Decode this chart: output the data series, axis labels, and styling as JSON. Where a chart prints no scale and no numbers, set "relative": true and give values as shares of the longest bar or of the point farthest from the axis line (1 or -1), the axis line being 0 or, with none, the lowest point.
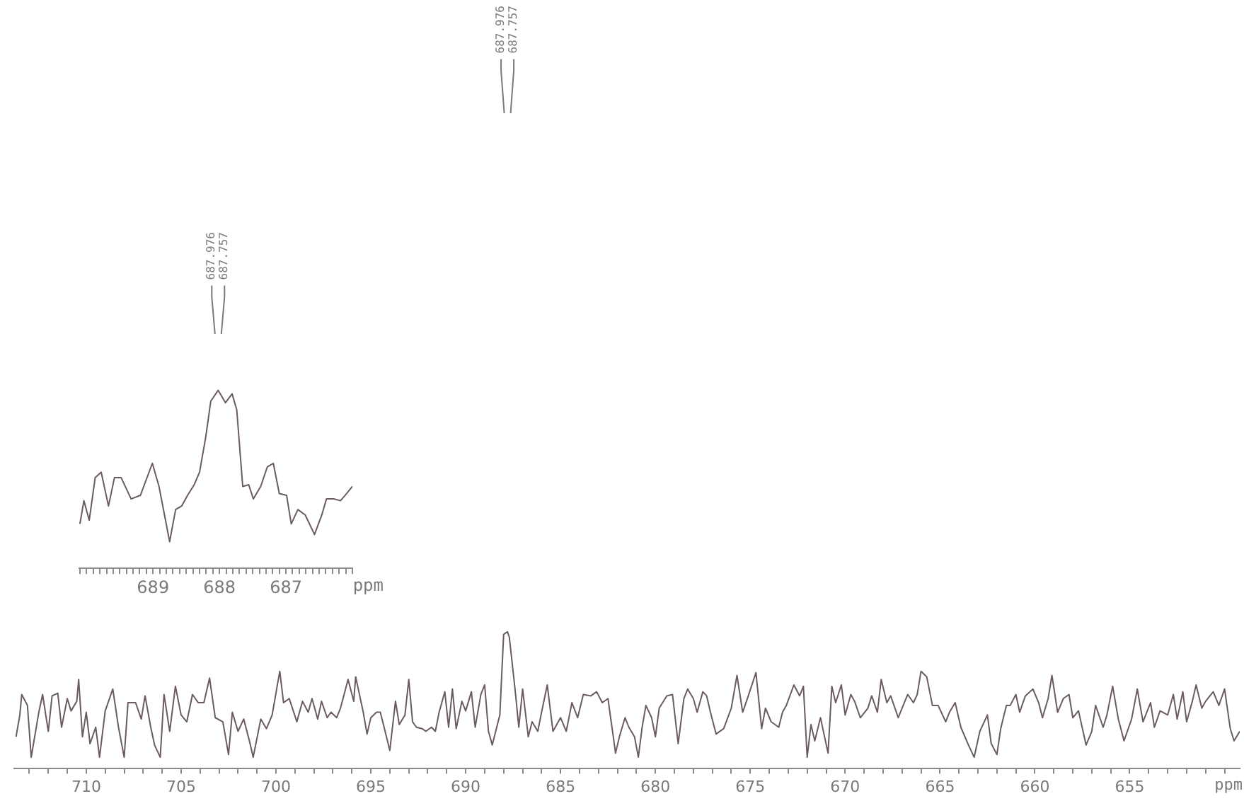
{
  "chart_data": [
    {
      "type": "line",
      "relative": true,
      "color": "#6b5b5e",
      "xlabel": "ppm",
      "xlim": [
        713.8,
        649.2
      ],
      "xticks": [
        {
          "value": 713,
          "label": null
        },
        {
          "value": 712,
          "label": null
        },
        {
          "value": 711,
          "label": null
        },
        710,
        {
          "value": 709,
          "label": null
        },
        {
          "value": 708,
          "label": null
        },
        {
          "value": 707,
          "label": null
        },
        {
          "value": 706,
          "label": null
        },
        705,
        {
          "value": 704,
          "label": null
        },
        {
          "value": 703,
          "label": null
        },
        {
          "value": 702,
          "label": null
        },
        {
          "value": 701,
          "label": null
        },
        700,
        {
          "value": 699,
          "label": null
        },
        {
          "value": 698,
          "label": null
        },
        {
          "value": 697,
          "label": null
        },
        {
          "value": 696,
          "label": null
        },
        695,
        {
          "value": 694,
          "label": null
        },
        {
          "value": 693,
          "label": null
        },
        {
          "value": 692,
          "label": null
        },
        {
          "value": 691,
          "label": null
        },
        690,
        {
          "value": 689,
          "label": null
        },
        {
          "value": 688,
          "label": null
        },
        {
          "value": 687,
          "label": null
        },
        {
          "value": 686,
          "label": null
        },
        685,
        {
          "value": 684,
          "label": null
        },
        {
          "value": 683,
          "label": null
        },
        {
          "value": 682,
          "label": null
        },
        {
          "value": 681,
          "label": null
        },
        680,
        {
          "value": 679,
          "label": null
        },
        {
          "value": 678,
          "label": null
        },
        {
          "value": 677,
          "label": null
        },
        {
          "value": 676,
          "label": null
        },
        675,
        {
          "value": 674,
          "label": null
        },
        {
          "value": 673,
          "label": null
        },
        {
          "value": 672,
          "label": null
        },
        {
          "value": 671,
          "label": null
        },
        670,
        {
          "value": 669,
          "label": null
        },
        {
          "value": 668,
          "label": null
        },
        {
          "value": 667,
          "label": null
        },
        {
          "value": 666,
          "label": null
        },
        665,
        {
          "value": 664,
          "label": null
        },
        {
          "value": 663,
          "label": null
        },
        {
          "value": 662,
          "label": null
        },
        {
          "value": 661,
          "label": null
        },
        660,
        {
          "value": 659,
          "label": null
        },
        {
          "value": 658,
          "label": null
        },
        {
          "value": 657,
          "label": null
        },
        {
          "value": 656,
          "label": null
        },
        655,
        {
          "value": 654,
          "label": null
        },
        {
          "value": 653,
          "label": null
        },
        {
          "value": 652,
          "label": null
        },
        {
          "value": 651,
          "label": null
        },
        {
          "value": 650,
          "label": null
        }
      ],
      "annotations": [
        "687.976",
        "687.757"
      ],
      "x": [
        713.7,
        713.5,
        713.4,
        713.1,
        712.9,
        712.5,
        712.3,
        712.0,
        711.8,
        711.5,
        711.3,
        711.0,
        710.8,
        710.5,
        710.4,
        710.2,
        710.0,
        709.8,
        709.5,
        709.3,
        709.0,
        708.6,
        708.3,
        708.0,
        707.8,
        707.4,
        707.1,
        706.9,
        706.6,
        706.4,
        706.1,
        705.9,
        705.6,
        705.3,
        705.0,
        704.7,
        704.4,
        704.1,
        703.8,
        703.5,
        703.2,
        702.8,
        702.5,
        702.3,
        702.0,
        701.7,
        701.4,
        701.2,
        700.8,
        700.5,
        700.2,
        699.8,
        699.6,
        699.3,
        698.9,
        698.6,
        698.3,
        698.1,
        697.8,
        697.6,
        697.3,
        697.1,
        696.8,
        696.6,
        696.2,
        695.9,
        695.8,
        695.4,
        695.2,
        695.0,
        694.7,
        694.5,
        694.3,
        694.0,
        693.7,
        693.5,
        693.2,
        693.0,
        692.8,
        692.6,
        692.3,
        692.1,
        691.8,
        691.6,
        691.4,
        691.1,
        690.9,
        690.7,
        690.5,
        690.2,
        690.0,
        689.7,
        689.5,
        689.2,
        689.0,
        688.8,
        688.6,
        688.2,
        688.0,
        687.8,
        687.7,
        687.4,
        687.2,
        687.0,
        686.7,
        686.5,
        686.2,
        686.0,
        685.7,
        685.4,
        685.0,
        684.7,
        684.4,
        684.1,
        683.8,
        683.4,
        683.1,
        682.8,
        682.5,
        682.1,
        681.9,
        681.6,
        681.4,
        681.1,
        680.9,
        680.7,
        680.5,
        680.2,
        680.0,
        679.8,
        679.4,
        679.1,
        678.8,
        678.5,
        678.3,
        678.0,
        677.8,
        677.5,
        677.3,
        677.1,
        676.8,
        676.4,
        676.0,
        675.7,
        675.4,
        675.2,
        674.7,
        674.4,
        674.2,
        673.9,
        673.5,
        673.3,
        673.1,
        672.7,
        672.4,
        672.2,
        672.0,
        671.8,
        671.6,
        671.3,
        670.9,
        670.7,
        670.5,
        670.2,
        670.0,
        669.7,
        669.5,
        669.2,
        668.8,
        668.6,
        668.3,
        668.1,
        667.8,
        667.6,
        667.2,
        667.0,
        666.7,
        666.4,
        666.2,
        666.0,
        665.7,
        665.4,
        665.1,
        664.7,
        664.5,
        664.2,
        663.9,
        663.5,
        663.2,
        662.9,
        662.5,
        662.3,
        662.0,
        661.8,
        661.5,
        661.3,
        661.0,
        660.8,
        660.5,
        660.1,
        659.8,
        659.6,
        659.3,
        659.1,
        658.8,
        658.5,
        658.2,
        658.0,
        657.7,
        657.3,
        657.0,
        656.8,
        656.4,
        656.2,
        655.9,
        655.6,
        655.3,
        654.9,
        654.6,
        654.3,
        653.9,
        653.7,
        653.4,
        653.0,
        652.7,
        652.5,
        652.2,
        652.0,
        651.7,
        651.5,
        651.2,
        651.0,
        650.6,
        650.3,
        650.0,
        649.7,
        649.5,
        649.2
      ],
      "values": [
        0.23,
        0.39,
        0.54,
        0.46,
        0.08,
        0.41,
        0.54,
        0.27,
        0.53,
        0.55,
        0.3,
        0.51,
        0.42,
        0.49,
        0.65,
        0.23,
        0.41,
        0.18,
        0.3,
        0.08,
        0.42,
        0.58,
        0.3,
        0.08,
        0.48,
        0.48,
        0.36,
        0.53,
        0.3,
        0.17,
        0.08,
        0.54,
        0.27,
        0.6,
        0.39,
        0.34,
        0.54,
        0.48,
        0.48,
        0.66,
        0.37,
        0.34,
        0.1,
        0.41,
        0.27,
        0.36,
        0.2,
        0.08,
        0.36,
        0.29,
        0.39,
        0.71,
        0.48,
        0.51,
        0.34,
        0.49,
        0.41,
        0.51,
        0.36,
        0.49,
        0.37,
        0.41,
        0.37,
        0.44,
        0.65,
        0.49,
        0.67,
        0.41,
        0.25,
        0.37,
        0.41,
        0.41,
        0.3,
        0.13,
        0.49,
        0.32,
        0.39,
        0.65,
        0.34,
        0.3,
        0.29,
        0.27,
        0.3,
        0.27,
        0.41,
        0.56,
        0.3,
        0.58,
        0.29,
        0.49,
        0.42,
        0.56,
        0.3,
        0.54,
        0.61,
        0.27,
        0.17,
        0.39,
        0.98,
        1.0,
        0.96,
        0.58,
        0.3,
        0.58,
        0.23,
        0.34,
        0.27,
        0.41,
        0.61,
        0.27,
        0.37,
        0.27,
        0.48,
        0.37,
        0.54,
        0.53,
        0.56,
        0.48,
        0.51,
        0.11,
        0.23,
        0.37,
        0.3,
        0.23,
        0.08,
        0.3,
        0.46,
        0.37,
        0.23,
        0.44,
        0.53,
        0.54,
        0.18,
        0.51,
        0.58,
        0.51,
        0.41,
        0.56,
        0.53,
        0.41,
        0.25,
        0.29,
        0.44,
        0.68,
        0.41,
        0.49,
        0.7,
        0.29,
        0.44,
        0.34,
        0.3,
        0.41,
        0.46,
        0.61,
        0.53,
        0.6,
        0.08,
        0.32,
        0.2,
        0.37,
        0.11,
        0.6,
        0.48,
        0.61,
        0.39,
        0.54,
        0.49,
        0.37,
        0.44,
        0.53,
        0.41,
        0.65,
        0.48,
        0.53,
        0.37,
        0.44,
        0.54,
        0.48,
        0.54,
        0.71,
        0.67,
        0.46,
        0.46,
        0.34,
        0.41,
        0.48,
        0.3,
        0.17,
        0.08,
        0.27,
        0.39,
        0.18,
        0.1,
        0.29,
        0.46,
        0.46,
        0.54,
        0.41,
        0.53,
        0.58,
        0.48,
        0.37,
        0.51,
        0.68,
        0.41,
        0.51,
        0.54,
        0.37,
        0.42,
        0.17,
        0.27,
        0.46,
        0.3,
        0.39,
        0.6,
        0.36,
        0.2,
        0.36,
        0.58,
        0.34,
        0.48,
        0.3,
        0.42,
        0.39,
        0.54,
        0.36,
        0.56,
        0.34,
        0.49,
        0.61,
        0.44,
        0.49,
        0.56,
        0.46,
        0.58,
        0.29,
        0.2,
        0.27
      ]
    },
    {
      "type": "line",
      "relative": true,
      "color": "#6b5b5e",
      "xlabel": "ppm",
      "xlim": [
        690.11,
        686.0
      ],
      "xticks": [
        {
          "value": 690.1,
          "label": null
        },
        {
          "value": 690.0,
          "label": null
        },
        {
          "value": 689.9,
          "label": null
        },
        {
          "value": 689.8,
          "label": null
        },
        {
          "value": 689.7,
          "label": null
        },
        {
          "value": 689.6,
          "label": null
        },
        {
          "value": 689.5,
          "label": null
        },
        {
          "value": 689.4,
          "label": null
        },
        {
          "value": 689.3,
          "label": null
        },
        {
          "value": 689.2,
          "label": null
        },
        {
          "value": 689.1,
          "label": null
        },
        689,
        {
          "value": 688.9,
          "label": null
        },
        {
          "value": 688.8,
          "label": null
        },
        {
          "value": 688.7,
          "label": null
        },
        {
          "value": 688.6,
          "label": null
        },
        {
          "value": 688.5,
          "label": null
        },
        {
          "value": 688.4,
          "label": null
        },
        {
          "value": 688.3,
          "label": null
        },
        {
          "value": 688.2,
          "label": null
        },
        {
          "value": 688.1,
          "label": null
        },
        688,
        {
          "value": 687.9,
          "label": null
        },
        {
          "value": 687.8,
          "label": null
        },
        {
          "value": 687.7,
          "label": null
        },
        {
          "value": 687.6,
          "label": null
        },
        {
          "value": 687.5,
          "label": null
        },
        {
          "value": 687.4,
          "label": null
        },
        {
          "value": 687.3,
          "label": null
        },
        {
          "value": 687.2,
          "label": null
        },
        {
          "value": 687.1,
          "label": null
        },
        687,
        {
          "value": 686.9,
          "label": null
        },
        {
          "value": 686.8,
          "label": null
        },
        {
          "value": 686.7,
          "label": null
        },
        {
          "value": 686.6,
          "label": null
        },
        {
          "value": 686.5,
          "label": null
        },
        {
          "value": 686.4,
          "label": null
        },
        {
          "value": 686.3,
          "label": null
        },
        {
          "value": 686.2,
          "label": null
        },
        {
          "value": 686.1,
          "label": null
        },
        {
          "value": 686.0,
          "label": null
        }
      ],
      "annotations": [
        "687.976",
        "687.757"
      ],
      "x": [
        690.1,
        690.04,
        689.96,
        689.87,
        689.78,
        689.67,
        689.58,
        689.48,
        689.33,
        689.19,
        689.01,
        688.91,
        688.75,
        688.66,
        688.57,
        688.48,
        688.38,
        688.3,
        688.21,
        688.13,
        688.02,
        687.91,
        687.81,
        687.74,
        687.65,
        687.56,
        687.49,
        687.38,
        687.28,
        687.19,
        687.1,
        686.99,
        686.92,
        686.82,
        686.71,
        686.57,
        686.46,
        686.39,
        686.28,
        686.18,
        686.11,
        686.0
      ],
      "values": [
        0.25,
        0.38,
        0.27,
        0.51,
        0.54,
        0.35,
        0.51,
        0.51,
        0.39,
        0.41,
        0.59,
        0.46,
        0.15,
        0.33,
        0.35,
        0.41,
        0.47,
        0.54,
        0.73,
        0.94,
        1.0,
        0.93,
        0.98,
        0.89,
        0.46,
        0.47,
        0.39,
        0.46,
        0.57,
        0.59,
        0.42,
        0.41,
        0.25,
        0.33,
        0.3,
        0.19,
        0.3,
        0.39,
        0.39,
        0.38,
        0.41,
        0.46
      ]
    }
  ]
}
